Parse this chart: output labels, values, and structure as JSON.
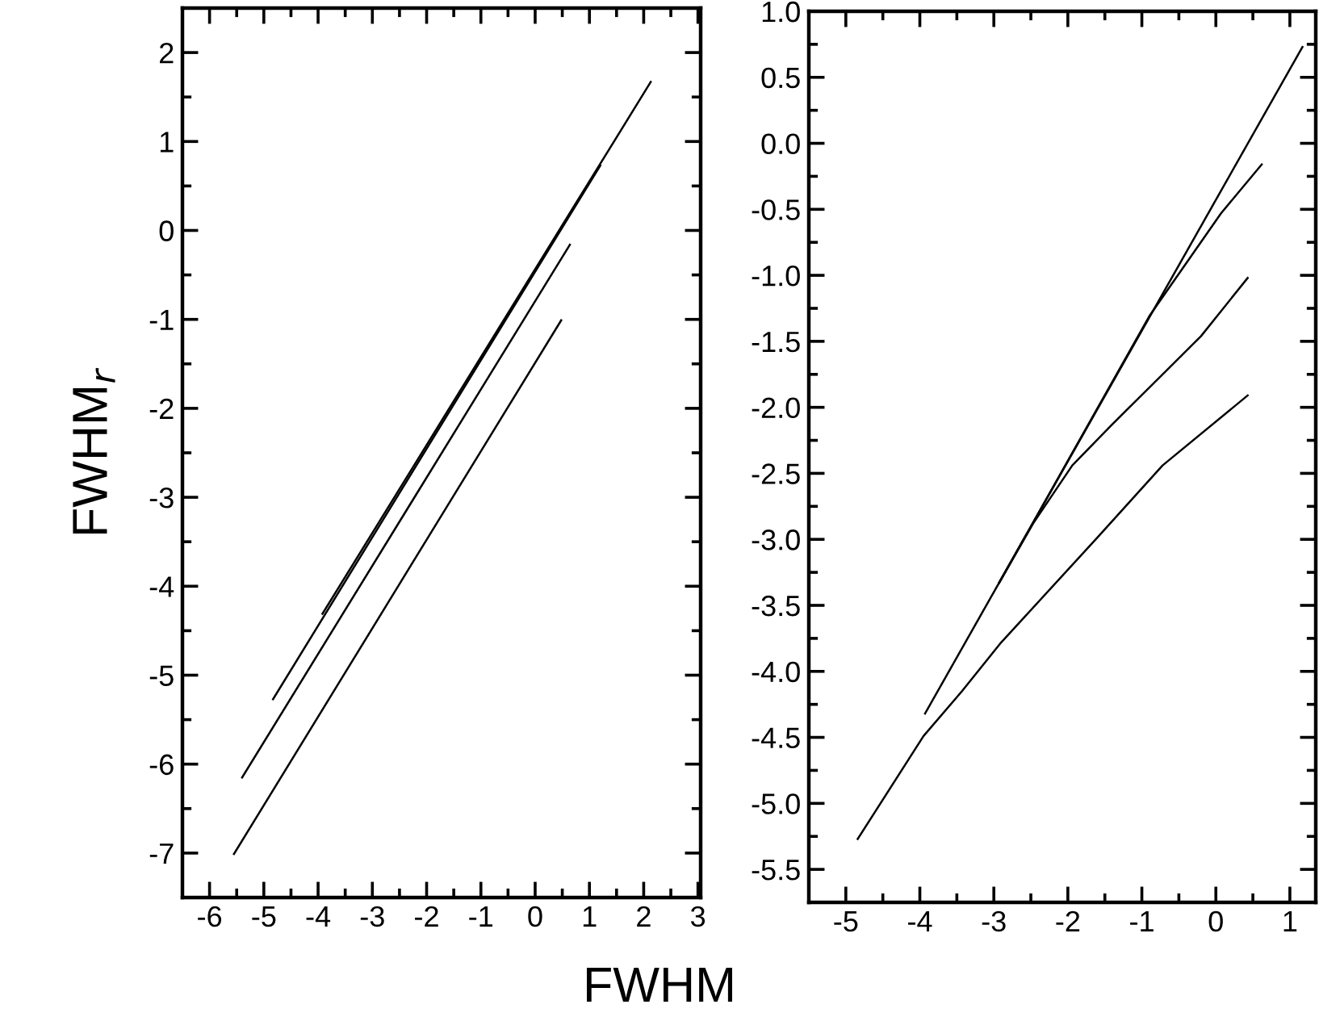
{
  "chart_data": [
    {
      "type": "line",
      "xlabel": "FWHM",
      "ylabel": "FWHM$_{r}$",
      "xlim": [
        -6.5,
        3.05
      ],
      "ylim": [
        -7.5,
        2.5
      ],
      "xticks": [
        -6,
        -5,
        -4,
        -3,
        -2,
        -1,
        0,
        1,
        2,
        3
      ],
      "yticks": [
        -7,
        -6,
        -5,
        -4,
        -3,
        -2,
        -1,
        0,
        1,
        2
      ],
      "grid": false,
      "legend": false,
      "series": [
        {
          "color": "#000000",
          "x": [
            -3.92,
            2.13
          ],
          "values": [
            -4.31,
            1.67
          ]
        },
        {
          "color": "#000000",
          "x": [
            -4.83,
            1.2
          ],
          "values": [
            -5.27,
            0.73
          ]
        },
        {
          "color": "#000000",
          "x": [
            -5.4,
            0.64
          ],
          "values": [
            -6.15,
            -0.16
          ]
        },
        {
          "color": "#000000",
          "x": [
            -5.55,
            0.48
          ],
          "values": [
            -7.01,
            -1.01
          ]
        }
      ]
    },
    {
      "type": "line",
      "xlim": [
        -5.5,
        1.35
      ],
      "ylim": [
        -5.75,
        1.0
      ],
      "xticks": [
        -5,
        -4,
        -3,
        -2,
        -1,
        0,
        1
      ],
      "yticks": [
        {
          "value": -5.5,
          "label": "-5.5"
        },
        {
          "value": -5.0,
          "label": "-5.0"
        },
        {
          "value": -4.5,
          "label": "-4.5"
        },
        {
          "value": -4.0,
          "label": "-4.0"
        },
        {
          "value": -3.5,
          "label": "-3.5"
        },
        {
          "value": -3.0,
          "label": "-3.0"
        },
        {
          "value": -2.5,
          "label": "-2.5"
        },
        {
          "value": -2.0,
          "label": "-2.0"
        },
        {
          "value": -1.5,
          "label": "-1.5"
        },
        {
          "value": -1.0,
          "label": "-1.0"
        },
        {
          "value": -0.5,
          "label": "-0.5"
        },
        {
          "value": 0.0,
          "label": "0.0"
        },
        {
          "value": 0.5,
          "label": "0.5"
        },
        {
          "value": 1.0,
          "label": "1.0"
        }
      ],
      "grid": false,
      "legend": false,
      "series": [
        {
          "color": "#000000",
          "x": [
            -4.84,
            -3.95,
            -3.43,
            -2.9,
            -1.59,
            -0.72,
            0.43
          ],
          "values": [
            -5.27,
            -4.49,
            -4.15,
            -3.78,
            -2.98,
            -2.44,
            -1.91
          ]
        },
        {
          "color": "#000000",
          "x": [
            -3.93,
            1.17
          ],
          "values": [
            -4.32,
            0.73
          ]
        },
        {
          "color": "#000000",
          "x": [
            -2.93,
            -2.47,
            -1.94,
            -1.42,
            -0.72,
            -0.2,
            0.43
          ],
          "values": [
            -3.33,
            -2.88,
            -2.44,
            -2.14,
            -1.75,
            -1.46,
            -1.02
          ]
        },
        {
          "color": "#000000",
          "x": [
            -2.93,
            -0.9,
            0.07,
            0.62
          ],
          "values": [
            -3.33,
            -1.31,
            -0.53,
            -0.16
          ]
        }
      ]
    }
  ]
}
